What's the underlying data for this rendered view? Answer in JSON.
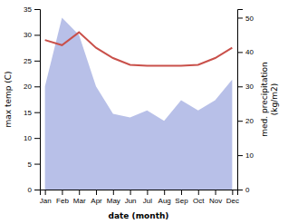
{
  "chart_data": {
    "type": "line",
    "xlabel": "date (month)",
    "ylabel": "max temp (C)",
    "y2label": "med. precipitation\n(kg/m2)",
    "categories": [
      "Jan",
      "Feb",
      "Mar",
      "Apr",
      "May",
      "Jun",
      "Jul",
      "Aug",
      "Sep",
      "Oct",
      "Nov",
      "Dec"
    ],
    "series": [
      {
        "type": "area",
        "axis": "y2",
        "color": "#b8c0e8",
        "values": [
          30,
          50,
          45,
          30,
          22,
          21,
          23,
          20,
          26,
          23,
          26,
          32
        ]
      },
      {
        "type": "line",
        "color": "#c9504a",
        "values": [
          29,
          28,
          30.5,
          27.5,
          25.5,
          24.2,
          24.0,
          24.0,
          24.0,
          24.2,
          25.5,
          27.5
        ]
      }
    ],
    "ylim": [
      0,
      35
    ],
    "yticks": [
      0,
      5,
      10,
      15,
      20,
      25,
      30,
      35
    ],
    "y2lim": [
      0,
      52.5
    ],
    "y2ticks": [
      0,
      10,
      20,
      30,
      40,
      50
    ],
    "grid": false
  }
}
